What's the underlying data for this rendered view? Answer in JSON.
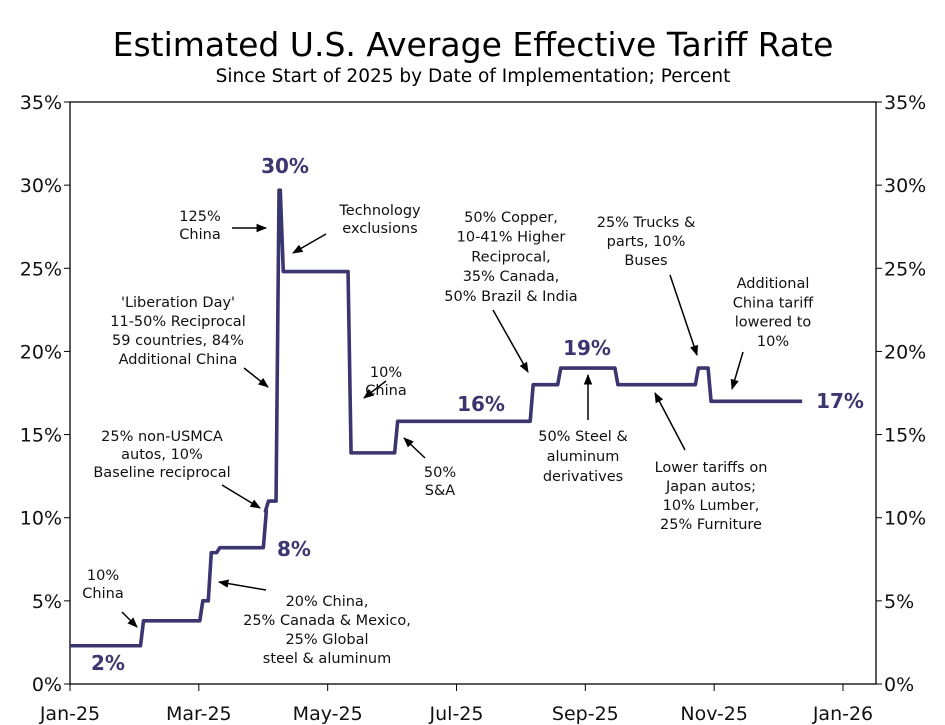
{
  "chart_data": {
    "type": "line",
    "title": "Estimated U.S. Average Effective Tariff Rate",
    "subtitle": "Since Start of 2025 by Date of Implementation; Percent",
    "xlabel": "",
    "ylabel": "",
    "ylim": [
      0,
      35
    ],
    "xlim": [
      "2025-01-01",
      "2026-01-01"
    ],
    "y_ticks": [
      "0%",
      "5%",
      "10%",
      "15%",
      "20%",
      "25%",
      "30%",
      "35%"
    ],
    "x_ticks": [
      "Jan-25",
      "Mar-25",
      "May-25",
      "Jul-25",
      "Sep-25",
      "Nov-25",
      "Jan-26"
    ],
    "grid": false,
    "line_color": "#3b3570",
    "series": [
      {
        "step": true,
        "points": [
          [
            "2025-01-01",
            2.3
          ],
          [
            "2025-02-04",
            3.8
          ],
          [
            "2025-03-04",
            5.0
          ],
          [
            "2025-03-08",
            7.9
          ],
          [
            "2025-03-12",
            8.2
          ],
          [
            "2025-04-03",
            10.4
          ],
          [
            "2025-04-04",
            11.0
          ],
          [
            "2025-04-09",
            29.7
          ],
          [
            "2025-04-11",
            24.8
          ],
          [
            "2025-05-13",
            13.9
          ],
          [
            "2025-06-04",
            15.8
          ],
          [
            "2025-08-07",
            18.0
          ],
          [
            "2025-08-20",
            19.0
          ],
          [
            "2025-09-16",
            18.0
          ],
          [
            "2025-10-24",
            19.0
          ],
          [
            "2025-10-30",
            17.0
          ],
          [
            "2025-12-12",
            17.0
          ]
        ]
      }
    ],
    "value_labels": [
      "2%",
      "8%",
      "30%",
      "16%",
      "19%",
      "17%"
    ],
    "annotations": [
      [
        "10%",
        "China"
      ],
      [
        "25% non-USMCA",
        "autos, 10%",
        "Baseline reciprocal"
      ],
      [
        "'Liberation Day'",
        "11-50% Reciprocal",
        "59 countries, 84%",
        "Additional China"
      ],
      [
        "125%",
        "China"
      ],
      [
        "Technology",
        "exclusions"
      ],
      [
        "10%",
        "China"
      ],
      [
        "50%",
        "S&A"
      ],
      [
        "50% Copper,",
        "10-41% Higher",
        "Reciprocal,",
        "35% Canada,",
        "50% Brazil & India"
      ],
      [
        "50% Steel &",
        "aluminum",
        "derivatives"
      ],
      [
        "25% Trucks &",
        "parts, 10%",
        "Buses"
      ],
      [
        "Additional",
        "China tariff",
        "lowered to",
        "10%"
      ],
      [
        "Lower tariffs on",
        "Japan autos;",
        "10% Lumber,",
        "25% Furniture"
      ],
      [
        "20% China,",
        "25% Canada & Mexico,",
        "25% Global",
        "steel & aluminum"
      ]
    ]
  }
}
